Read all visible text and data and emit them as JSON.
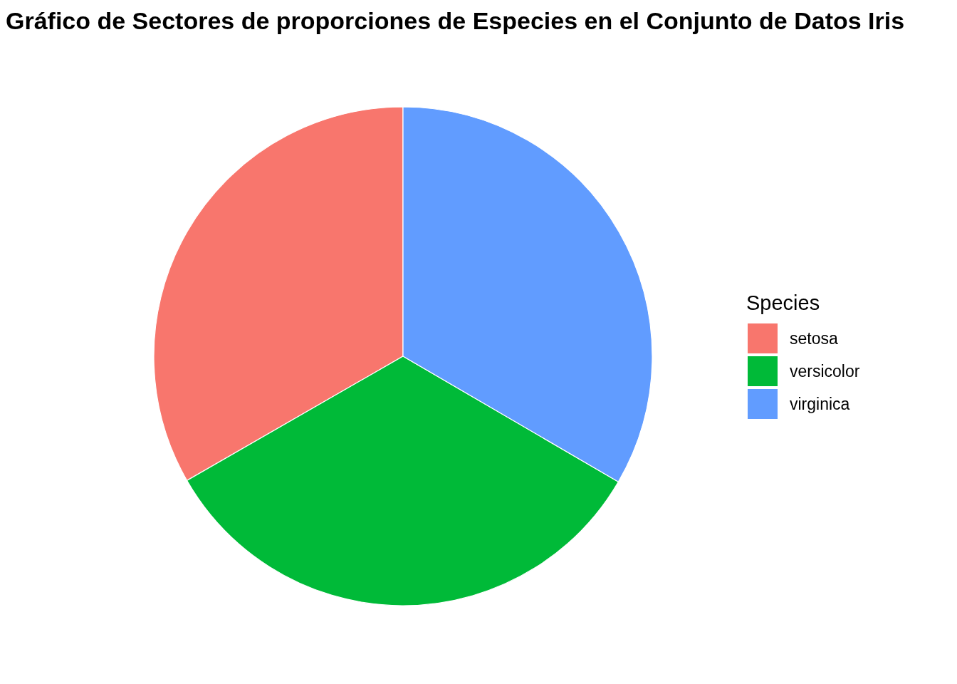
{
  "chart_data": {
    "type": "pie",
    "title": "Gráfico de Sectores de proporciones de Especies en el Conjunto de Datos Iris",
    "categories": [
      "setosa",
      "versicolor",
      "virginica"
    ],
    "values": [
      33.3,
      33.3,
      33.4
    ],
    "colors": [
      "#f8766d",
      "#00ba38",
      "#619cff"
    ],
    "legend": "right",
    "legend_title": "Species"
  }
}
